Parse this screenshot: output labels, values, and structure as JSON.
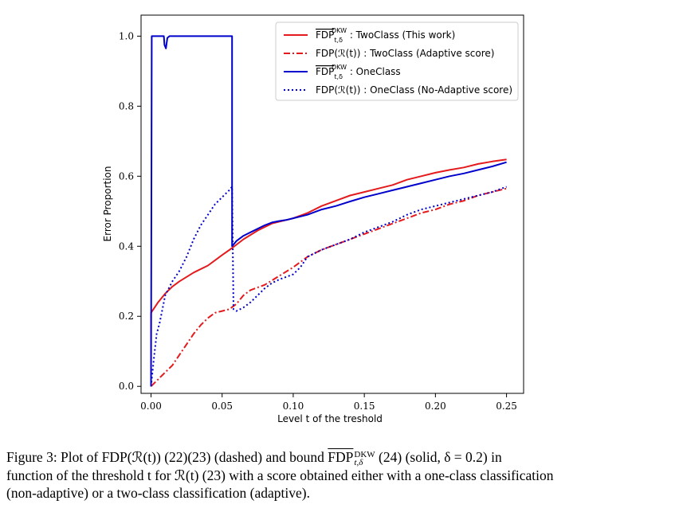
{
  "chart_data": {
    "type": "line",
    "xlabel": "Level t of the treshold",
    "ylabel": "Error Proportion",
    "xlim": [
      -0.007,
      0.262
    ],
    "ylim": [
      -0.02,
      1.06
    ],
    "xticks": [
      0.0,
      0.05,
      0.1,
      0.15,
      0.2,
      0.25
    ],
    "xtick_labels": [
      "0.00",
      "0.05",
      "0.10",
      "0.15",
      "0.20",
      "0.25"
    ],
    "yticks": [
      0.0,
      0.2,
      0.4,
      0.6,
      0.8,
      1.0
    ],
    "ytick_labels": [
      "0.0",
      "0.2",
      "0.4",
      "0.6",
      "0.8",
      "1.0"
    ],
    "grid": false,
    "legend_position": "top-right",
    "series": [
      {
        "name": "FDP_{t,δ}^{DKW} : TwoClass (This work)",
        "color": "#e41a1c",
        "style": "solid",
        "x": [
          0.0,
          0.0,
          0.005,
          0.01,
          0.015,
          0.02,
          0.03,
          0.04,
          0.05,
          0.057,
          0.065,
          0.075,
          0.085,
          0.095,
          0.1,
          0.11,
          0.12,
          0.13,
          0.14,
          0.15,
          0.16,
          0.17,
          0.18,
          0.19,
          0.2,
          0.21,
          0.22,
          0.23,
          0.24,
          0.25
        ],
        "y": [
          0.0,
          0.21,
          0.24,
          0.265,
          0.285,
          0.3,
          0.325,
          0.345,
          0.375,
          0.395,
          0.42,
          0.445,
          0.465,
          0.475,
          0.48,
          0.495,
          0.515,
          0.53,
          0.545,
          0.555,
          0.565,
          0.575,
          0.59,
          0.6,
          0.61,
          0.618,
          0.625,
          0.635,
          0.642,
          0.648
        ]
      },
      {
        "name": "FDP(R(t)) : TwoClass (Adaptive score)",
        "color": "#e41a1c",
        "style": "dashdot",
        "x": [
          0.0,
          0.005,
          0.01,
          0.015,
          0.02,
          0.025,
          0.03,
          0.035,
          0.04,
          0.045,
          0.05,
          0.055,
          0.06,
          0.065,
          0.07,
          0.08,
          0.09,
          0.1,
          0.105,
          0.11,
          0.12,
          0.13,
          0.14,
          0.15,
          0.16,
          0.17,
          0.18,
          0.19,
          0.2,
          0.21,
          0.22,
          0.23,
          0.24,
          0.25
        ],
        "y": [
          0.0,
          0.02,
          0.04,
          0.06,
          0.09,
          0.12,
          0.15,
          0.175,
          0.195,
          0.21,
          0.215,
          0.22,
          0.235,
          0.26,
          0.275,
          0.29,
          0.315,
          0.34,
          0.355,
          0.37,
          0.39,
          0.405,
          0.42,
          0.435,
          0.45,
          0.465,
          0.48,
          0.495,
          0.505,
          0.52,
          0.53,
          0.545,
          0.555,
          0.565
        ]
      },
      {
        "name": "FDP_{t,δ}^{DKW} : OneClass",
        "color": "#0000cc",
        "style": "solid",
        "x": [
          0.0,
          0.0005,
          0.001,
          0.009,
          0.0095,
          0.0105,
          0.0115,
          0.013,
          0.057,
          0.057,
          0.06,
          0.065,
          0.07,
          0.075,
          0.08,
          0.085,
          0.09,
          0.095,
          0.1,
          0.11,
          0.12,
          0.13,
          0.14,
          0.15,
          0.16,
          0.17,
          0.18,
          0.19,
          0.2,
          0.21,
          0.22,
          0.23,
          0.24,
          0.25
        ],
        "y": [
          0.0,
          1.0,
          1.0,
          1.0,
          0.975,
          0.965,
          0.995,
          1.0,
          1.0,
          0.4,
          0.415,
          0.43,
          0.44,
          0.45,
          0.46,
          0.468,
          0.472,
          0.475,
          0.48,
          0.49,
          0.505,
          0.515,
          0.528,
          0.54,
          0.55,
          0.56,
          0.57,
          0.58,
          0.59,
          0.6,
          0.608,
          0.618,
          0.628,
          0.64
        ]
      },
      {
        "name": "FDP(R(t)) : OneClass (No-Adaptive score)",
        "color": "#0000cc",
        "style": "dotted",
        "x": [
          0.0,
          0.002,
          0.004,
          0.006,
          0.008,
          0.01,
          0.015,
          0.02,
          0.025,
          0.03,
          0.035,
          0.04,
          0.045,
          0.05,
          0.055,
          0.057,
          0.058,
          0.06,
          0.065,
          0.07,
          0.075,
          0.08,
          0.085,
          0.09,
          0.1,
          0.105,
          0.11,
          0.12,
          0.13,
          0.14,
          0.15,
          0.16,
          0.17,
          0.18,
          0.19,
          0.2,
          0.21,
          0.22,
          0.23,
          0.24,
          0.25
        ],
        "y": [
          0.0,
          0.08,
          0.15,
          0.18,
          0.22,
          0.26,
          0.3,
          0.33,
          0.37,
          0.42,
          0.46,
          0.49,
          0.52,
          0.54,
          0.56,
          0.57,
          0.22,
          0.215,
          0.225,
          0.24,
          0.26,
          0.28,
          0.295,
          0.305,
          0.32,
          0.34,
          0.37,
          0.39,
          0.405,
          0.42,
          0.44,
          0.455,
          0.47,
          0.49,
          0.505,
          0.515,
          0.525,
          0.535,
          0.545,
          0.555,
          0.57
        ]
      }
    ]
  },
  "legend": [
    {
      "fdp": "FDP",
      "sub": "t,δ",
      "sup": "DKW",
      "label": " : TwoClass (This work)"
    },
    {
      "fdp": "FDP(ℛ(t))",
      "sub": "",
      "sup": "",
      "label": " : TwoClass (Adaptive score)"
    },
    {
      "fdp": "FDP",
      "sub": "t,δ",
      "sup": "DKW",
      "label": " : OneClass"
    },
    {
      "fdp": "FDP(ℛ(t))",
      "sub": "",
      "sup": "",
      "label": " : OneClass (No-Adaptive score)"
    }
  ],
  "caption": {
    "line1_a": "Figure 3:  Plot of FDP(ℛ(t)) (22)(23) (dashed) and bound ",
    "line1_fdp": "FDP",
    "line1_sup": "DKW",
    "line1_sub": "t,δ",
    "line1_b": " (24) (solid, δ = 0.2) in",
    "line2": "function of the threshold t for ℛ(t) (23) with a score obtained either with a one-class classification",
    "line3": "(non-adaptive) or a two-class classification (adaptive)."
  }
}
